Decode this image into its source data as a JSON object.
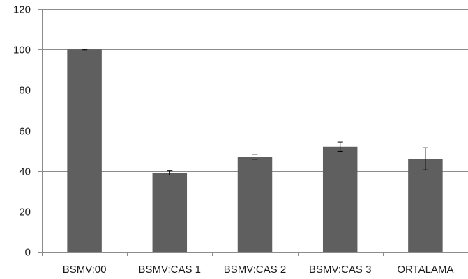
{
  "chart_data": {
    "type": "bar",
    "title": "",
    "xlabel": "",
    "ylabel": "",
    "categories": [
      "BSMV:00",
      "BSMV:CAS 1",
      "BSMV:CAS 2",
      "BSMV:CAS 3",
      "ORTALAMA"
    ],
    "values": [
      100,
      39,
      47,
      52,
      46
    ],
    "errors": [
      0.2,
      1,
      1.2,
      2.3,
      5.5
    ],
    "ylim": [
      0,
      120
    ],
    "yticks": [
      0,
      20,
      40,
      60,
      80,
      100,
      120
    ],
    "grid": true,
    "legend": "none",
    "bar_color": "#5f5f5f",
    "grid_color": "#8c8c8c",
    "axis_color": "#8c8c8c"
  }
}
